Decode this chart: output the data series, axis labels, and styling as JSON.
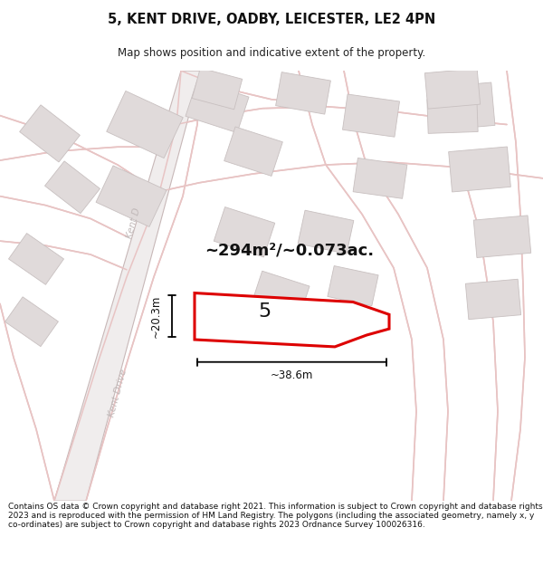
{
  "title_line1": "5, KENT DRIVE, OADBY, LEICESTER, LE2 4PN",
  "title_line2": "Map shows position and indicative extent of the property.",
  "footer_text": "Contains OS data © Crown copyright and database right 2021. This information is subject to Crown copyright and database rights 2023 and is reproduced with the permission of HM Land Registry. The polygons (including the associated geometry, namely x, y co-ordinates) are subject to Crown copyright and database rights 2023 Ordnance Survey 100026316.",
  "area_label": "~294m²/~0.073ac.",
  "number_label": "5",
  "dim_width": "~38.6m",
  "dim_height": "~20.3m",
  "background_color": "#ffffff",
  "map_bg": "#fafafa",
  "road_color": "#e8c4c4",
  "road_color2": "#d4a0a0",
  "building_fill": "#e0dada",
  "building_edge": "#c8c0c0",
  "property_fill": "#ffffff",
  "property_edge": "#dd0000",
  "street_color": "#c0b8b8",
  "street_name1": "Kent Drive",
  "street_name2": "Kent D",
  "fig_width": 6.0,
  "fig_height": 6.25
}
